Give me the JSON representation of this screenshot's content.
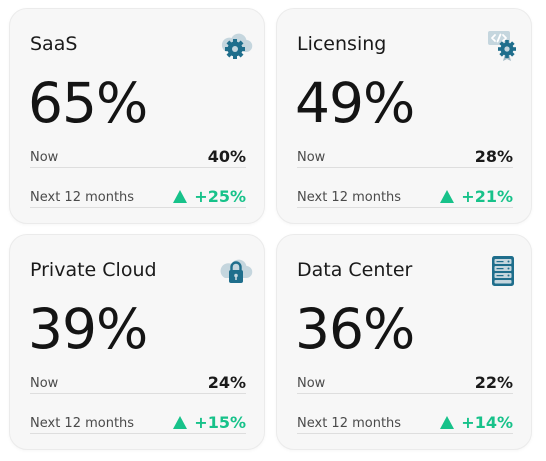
{
  "colors": {
    "card_bg": "#f7f7f7",
    "icon_dark": "#1f6e8c",
    "icon_light": "#c5d6de",
    "positive": "#17c28a"
  },
  "cards": [
    {
      "title": "SaaS",
      "percent": "65%",
      "icon": "cloud-gear-icon",
      "now_label": "Now",
      "now_value": "40%",
      "next_label": "Next 12 months",
      "next_value": "+25%"
    },
    {
      "title": "Licensing",
      "percent": "49%",
      "icon": "code-certificate-icon",
      "now_label": "Now",
      "now_value": "28%",
      "next_label": "Next 12 months",
      "next_value": "+21%"
    },
    {
      "title": "Private Cloud",
      "percent": "39%",
      "icon": "cloud-lock-icon",
      "now_label": "Now",
      "now_value": "24%",
      "next_label": "Next 12 months",
      "next_value": "+15%"
    },
    {
      "title": "Data Center",
      "percent": "36%",
      "icon": "server-rack-icon",
      "now_label": "Now",
      "now_value": "22%",
      "next_label": "Next 12 months",
      "next_value": "+14%"
    }
  ]
}
